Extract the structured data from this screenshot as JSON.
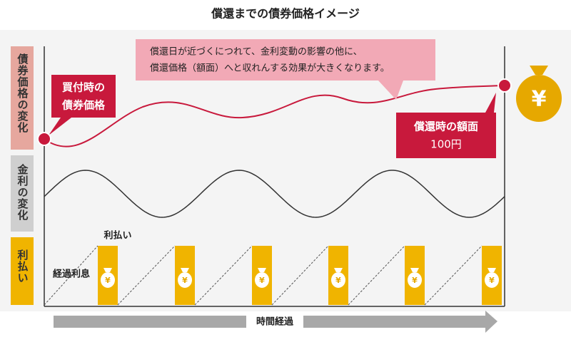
{
  "title": "償還までの債券価格イメージ",
  "row_labels": [
    "債券価格の変化",
    "金利の変化",
    "利払い"
  ],
  "note": {
    "lines": [
      "償還日が近づくにつれて、金利変動の影響の他に、",
      "償還価格（額面）へと収れんする効果が大きくなります。"
    ]
  },
  "purchase_callout": {
    "lines": [
      "買付時の",
      "債券価格"
    ]
  },
  "redemption_callout": {
    "lines": [
      "償還時の額面",
      "100円"
    ]
  },
  "payment_label": "利払い",
  "accrued_label": "経過利息",
  "time_label": "時間経過",
  "yen_symbol": "¥"
}
